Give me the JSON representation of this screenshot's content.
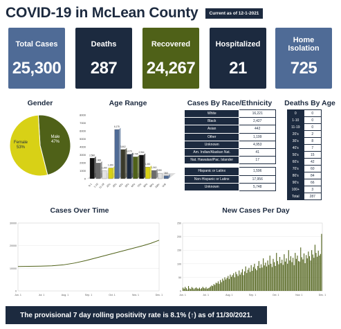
{
  "header": {
    "title": "COVID-19 in McLean County",
    "as_of": "Current as of 12-1-2021"
  },
  "stats": [
    {
      "label": "Total Cases",
      "value": "25,300",
      "color": "#4f6b96"
    },
    {
      "label": "Deaths",
      "value": "287",
      "color": "#1c2a3f"
    },
    {
      "label": "Recovered",
      "value": "24,267",
      "color": "#4f6118"
    },
    {
      "label": "Hospitalized",
      "value": "21",
      "color": "#1c2a3f"
    },
    {
      "label": "Home Isolation",
      "value": "725",
      "color": "#4f6b96"
    }
  ],
  "sections": {
    "gender": "Gender",
    "age_range": "Age Range",
    "race": "Cases By Race/Ethnicity",
    "deaths_by_age": "Deaths By Age",
    "cases_over_time": "Cases Over Time",
    "new_cases_per_day": "New Cases Per Day"
  },
  "race_table": {
    "rows": [
      {
        "label": "White",
        "value": "16,221"
      },
      {
        "label": "Black",
        "value": "2,427"
      },
      {
        "label": "Asian",
        "value": "442"
      },
      {
        "label": "Other",
        "value": "1,199"
      },
      {
        "label": "Unknown",
        "value": "4,953"
      },
      {
        "label": "Am. Indian/Alaskan Nat.",
        "value": "41"
      },
      {
        "label": "Nat. Hawaiian/Pac. Islander",
        "value": "17"
      }
    ],
    "ethnicity_rows": [
      {
        "label": "Hispanic or Latinx",
        "value": "1,596"
      },
      {
        "label": "Non-Hispanic or Latinx",
        "value": "17,956"
      },
      {
        "label": "Unknown",
        "value": "5,748"
      }
    ]
  },
  "deaths_by_age": [
    {
      "age": "0",
      "value": "0"
    },
    {
      "age": "1-10",
      "value": "0"
    },
    {
      "age": "11-19",
      "value": "0"
    },
    {
      "age": "20's",
      "value": "2"
    },
    {
      "age": "30's",
      "value": "8"
    },
    {
      "age": "40's",
      "value": "7"
    },
    {
      "age": "50's",
      "value": "15"
    },
    {
      "age": "60's",
      "value": "42"
    },
    {
      "age": "70's",
      "value": "60"
    },
    {
      "age": "80's",
      "value": "84"
    },
    {
      "age": "90's",
      "value": "66"
    },
    {
      "age": "100+",
      "value": "3"
    },
    {
      "age": "Total",
      "value": "287"
    }
  ],
  "footer": {
    "text": "The provisional 7 day rolling positivity rate is 8.1% (↑) as of 11/30/2021."
  },
  "chart_data": [
    {
      "type": "pie",
      "title": "Gender",
      "slices": [
        {
          "label": "Female",
          "pct_label": "53%",
          "value": 53,
          "color": "#d8d116"
        },
        {
          "label": "Male",
          "pct_label": "47%",
          "value": 47,
          "color": "#4f6118"
        }
      ]
    },
    {
      "type": "bar",
      "title": "Age Range",
      "ylim": [
        0,
        8000
      ],
      "yticks": [
        0,
        1000,
        2000,
        3000,
        4000,
        5000,
        6000,
        7000,
        8000
      ],
      "categories": [
        "0-1",
        "1-10",
        "11-19",
        "20's",
        "30's",
        "40's",
        "50's",
        "60's",
        "70's",
        "80's",
        "90's",
        "100+",
        "Unk"
      ],
      "values": [
        2586,
        1968,
        1000,
        1350,
        6175,
        3662,
        3079,
        2745,
        2964,
        1461,
        1040,
        690,
        360
      ],
      "value_labels": [
        "2,586",
        "1,968",
        "1,000",
        "1,350",
        "6,175",
        "3,662",
        "3,079",
        "2,745",
        "2,964",
        "1,461",
        "1,040",
        "690",
        "360"
      ],
      "colors": [
        "#111111",
        "#6b6b6b",
        "#e3e3e3",
        "#d8d116",
        "#4f6b96",
        "#3a3a2a",
        "#1c2a3f",
        "#4f6118",
        "#111111",
        "#d8d116",
        "#6b6b6b",
        "#e3e3e3",
        "#4f6b96"
      ]
    },
    {
      "type": "line",
      "title": "Cases Over Time",
      "ylim": [
        0,
        30000
      ],
      "yticks": [
        "0",
        "10000",
        "20000",
        "30000"
      ],
      "xticks": [
        "Jun. 1",
        "Jul. 1",
        "Aug. 1",
        "Sep. 1",
        "Oct. 1",
        "Nov. 1",
        "Dec. 1"
      ],
      "x": [
        0,
        0.08,
        0.16,
        0.24,
        0.32,
        0.4,
        0.48,
        0.56,
        0.64,
        0.72,
        0.8,
        0.88,
        0.94,
        1.0
      ],
      "y": [
        10800,
        10850,
        10950,
        11100,
        11500,
        12300,
        13400,
        14700,
        16000,
        17300,
        18600,
        19900,
        21000,
        22400
      ],
      "color": "#4f6118"
    },
    {
      "type": "bar",
      "title": "New Cases Per Day",
      "ylim": [
        0,
        250
      ],
      "yticks": [
        "0",
        "50",
        "100",
        "150",
        "200",
        "250"
      ],
      "xticks": [
        "Jun. 1",
        "Jul. 1",
        "Aug. 1",
        "Sep. 1",
        "Oct. 1",
        "Nov. 1",
        "Dec. 1"
      ],
      "values": [
        12,
        8,
        15,
        10,
        5,
        18,
        9,
        7,
        14,
        11,
        6,
        10,
        13,
        9,
        8,
        12,
        7,
        10,
        15,
        11,
        9,
        14,
        8,
        10,
        12,
        16,
        20,
        18,
        25,
        22,
        30,
        28,
        35,
        26,
        40,
        32,
        45,
        38,
        50,
        42,
        48,
        55,
        44,
        60,
        52,
        58,
        65,
        50,
        70,
        62,
        55,
        75,
        60,
        68,
        80,
        58,
        72,
        90,
        66,
        78,
        85,
        70,
        95,
        74,
        88,
        100,
        82,
        76,
        92,
        110,
        84,
        98,
        86,
        120,
        94,
        104,
        90,
        112,
        96,
        130,
        100,
        88,
        118,
        106,
        92,
        140,
        110,
        98,
        125,
        102,
        115,
        96,
        135,
        108,
        120,
        100,
        150,
        112,
        128,
        106,
        122,
        95,
        140,
        118,
        130,
        110,
        108,
        160,
        124,
        116,
        138,
        102,
        132,
        120,
        145,
        128,
        112,
        150,
        134,
        122,
        170,
        140,
        126,
        148,
        130,
        136,
        210
      ],
      "color": "#4f6118"
    }
  ]
}
